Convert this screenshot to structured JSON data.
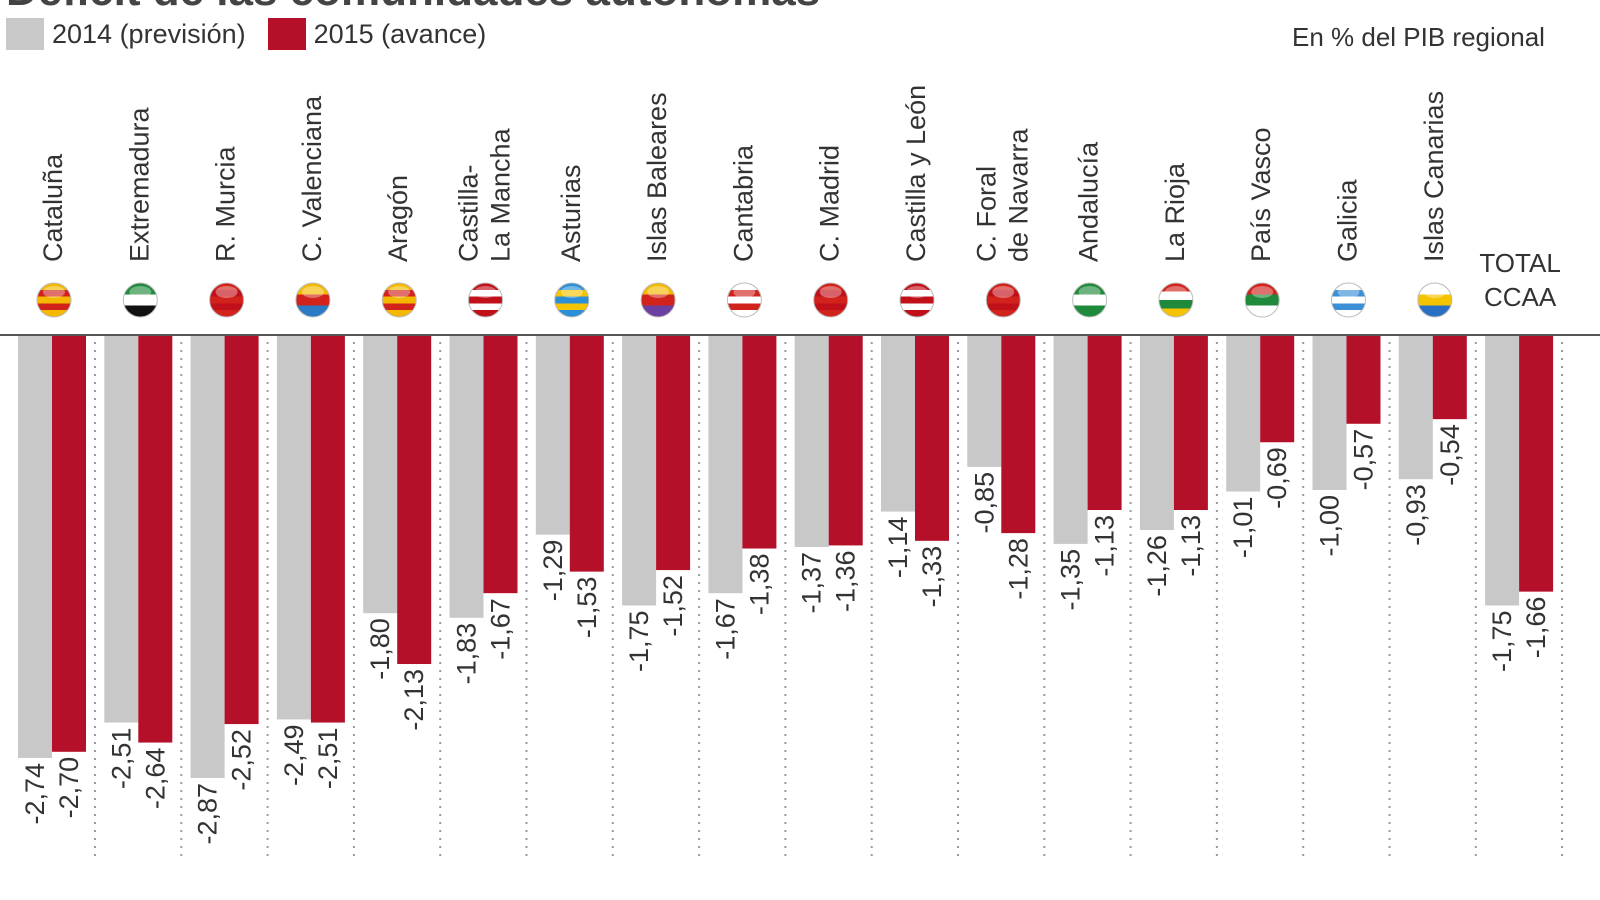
{
  "chart_data": {
    "type": "bar",
    "title": "Déficit de las comunidades autónomas",
    "unit_note": "En % del PIB regional",
    "ylabel": "",
    "xlabel": "",
    "ylim": [
      -3.0,
      0
    ],
    "grid": false,
    "legend_position": "top-left",
    "categories": [
      [
        "Cataluña"
      ],
      [
        "Extremadura"
      ],
      [
        "R. Murcia"
      ],
      [
        "C. Valenciana"
      ],
      [
        "Aragón"
      ],
      [
        "Castilla-",
        "La Mancha"
      ],
      [
        "Asturias"
      ],
      [
        "Islas Baleares"
      ],
      [
        "Cantabria"
      ],
      [
        "C. Madrid"
      ],
      [
        "Castilla y León"
      ],
      [
        "C. Foral",
        "de Navarra"
      ],
      [
        "Andalucía"
      ],
      [
        "La Rioja"
      ],
      [
        "País Vasco"
      ],
      [
        "Galicia"
      ],
      [
        "Islas Canarias"
      ],
      [
        "TOTAL",
        "CCAA"
      ]
    ],
    "series": [
      {
        "name": "2014 (previsión)",
        "color": "#c8c8c8",
        "values": [
          -2.74,
          -2.51,
          -2.87,
          -2.49,
          -1.8,
          -1.83,
          -1.29,
          -1.75,
          -1.67,
          -1.37,
          -1.14,
          -0.85,
          -1.35,
          -1.26,
          -1.01,
          -1.0,
          -0.93,
          -1.75
        ],
        "labels": [
          "-2,74",
          "-2,51",
          "-2,87",
          "-2,49",
          "-1,80",
          "-1,83",
          "-1,29",
          "-1,75",
          "-1,67",
          "-1,37",
          "-1,14",
          "-0,85",
          "-1,35",
          "-1,26",
          "-1,01",
          "-1,00",
          "-0,93",
          "-1,75"
        ]
      },
      {
        "name": "2015 (avance)",
        "color": "#b5102a",
        "values": [
          -2.7,
          -2.64,
          -2.52,
          -2.51,
          -2.13,
          -1.67,
          -1.53,
          -1.52,
          -1.38,
          -1.36,
          -1.33,
          -1.28,
          -1.13,
          -1.13,
          -0.69,
          -0.57,
          -0.54,
          -1.66
        ],
        "labels": [
          "-2,70",
          "-2,64",
          "-2,52",
          "-2,51",
          "-2,13",
          "-1,67",
          "-1,53",
          "-1,52",
          "-1,38",
          "-1,36",
          "-1,33",
          "-1,28",
          "-1,13",
          "-1,13",
          "-0,69",
          "-0,57",
          "-0,54",
          "-1,66"
        ]
      }
    ],
    "flags": [
      [
        "#f5b800",
        "#d2221c"
      ],
      [
        "#1f8a3c",
        "#ffffff",
        "#111111"
      ],
      [
        "#d2221c",
        "#c0101a"
      ],
      [
        "#f5b800",
        "#d2221c",
        "#2b7bc4"
      ],
      [
        "#f5b800",
        "#d2221c"
      ],
      [
        "#c0101a",
        "#ffffff"
      ],
      [
        "#2a8fd6",
        "#f5c400"
      ],
      [
        "#f5b800",
        "#d2221c",
        "#6b3fa0"
      ],
      [
        "#ffffff",
        "#d2221c"
      ],
      [
        "#d2221c",
        "#c0101a"
      ],
      [
        "#c0101a",
        "#ffffff"
      ],
      [
        "#d2221c",
        "#c0101a"
      ],
      [
        "#1f8a3c",
        "#ffffff",
        "#1f8a3c"
      ],
      [
        "#d2221c",
        "#ffffff",
        "#1f8a3c",
        "#f5c400"
      ],
      [
        "#d2221c",
        "#1f8a3c",
        "#ffffff"
      ],
      [
        "#ffffff",
        "#3b8fd6"
      ],
      [
        "#ffffff",
        "#f5c400",
        "#2a6fc4"
      ],
      null
    ]
  }
}
